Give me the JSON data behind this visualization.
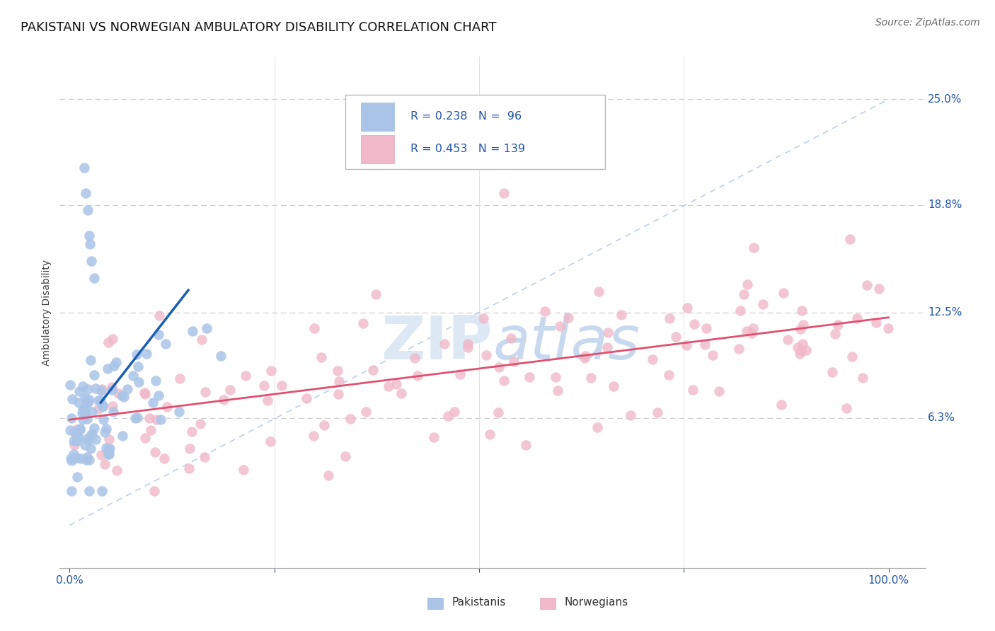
{
  "title": "PAKISTANI VS NORWEGIAN AMBULATORY DISABILITY CORRELATION CHART",
  "source": "Source: ZipAtlas.com",
  "ylabel": "Ambulatory Disability",
  "ytick_labels": [
    "6.3%",
    "12.5%",
    "18.8%",
    "25.0%"
  ],
  "ytick_values": [
    0.063,
    0.125,
    0.188,
    0.25
  ],
  "pakistani_color": "#aac4e8",
  "norwegian_color": "#f0b8c8",
  "pakistani_line_color": "#1a5fb4",
  "norwegian_line_color": "#e05070",
  "diagonal_color": "#b0c8e8",
  "background_color": "#ffffff",
  "grid_color": "#c8c8c8",
  "watermark_color": "#dde8f5",
  "title_fontsize": 13,
  "axis_label_fontsize": 10,
  "tick_fontsize": 11,
  "source_fontsize": 10
}
